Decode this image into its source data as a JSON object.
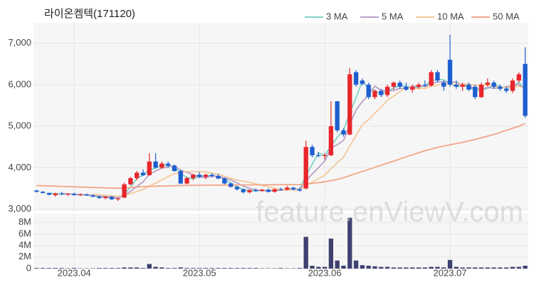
{
  "chart_data": {
    "type": "candlestick",
    "title": "라이온켐텍(171120)",
    "watermark": "feature.enViewV.com",
    "categories": [
      null,
      null,
      null,
      null,
      null,
      null,
      "2023.04",
      null,
      null,
      null,
      null,
      null,
      null,
      null,
      null,
      null,
      null,
      null,
      null,
      null,
      null,
      null,
      null,
      null,
      null,
      null,
      "2023.05",
      null,
      null,
      null,
      null,
      null,
      null,
      null,
      null,
      null,
      null,
      null,
      null,
      null,
      null,
      null,
      null,
      null,
      null,
      null,
      "2023.06",
      null,
      null,
      null,
      null,
      null,
      null,
      null,
      null,
      null,
      null,
      null,
      null,
      null,
      null,
      null,
      null,
      null,
      null,
      null,
      "2023.07",
      null,
      null,
      null,
      null,
      null,
      null,
      null,
      null,
      null,
      null,
      null,
      null
    ],
    "open": [
      3450,
      3420,
      3390,
      3340,
      3380,
      3360,
      3370,
      3340,
      3350,
      3330,
      3300,
      3270,
      3300,
      3240,
      3280,
      3600,
      3750,
      3880,
      3820,
      4150,
      4000,
      4100,
      4050,
      3920,
      3620,
      3750,
      3830,
      3780,
      3830,
      3800,
      3740,
      3620,
      3540,
      3480,
      3410,
      3460,
      3440,
      3470,
      3420,
      3480,
      3470,
      3520,
      3480,
      3500,
      4500,
      4300,
      4280,
      4300,
      5600,
      4900,
      4800,
      6300,
      6100,
      6000,
      5700,
      5850,
      5750,
      5950,
      6050,
      5950,
      5880,
      5950,
      6000,
      5980,
      6300,
      6050,
      6600,
      6000,
      5950,
      6000,
      5950,
      5700,
      6000,
      6050,
      5950,
      5900,
      5850,
      6100,
      6500
    ],
    "high": [
      3470,
      3440,
      3400,
      3400,
      3420,
      3390,
      3400,
      3380,
      3380,
      3360,
      3330,
      3320,
      3320,
      3280,
      3640,
      3780,
      3920,
      3960,
      4350,
      4350,
      4150,
      4150,
      4080,
      3950,
      3780,
      3850,
      3900,
      3860,
      3870,
      3850,
      3760,
      3640,
      3560,
      3500,
      3480,
      3500,
      3490,
      3500,
      3500,
      3520,
      3560,
      3540,
      3520,
      4650,
      4550,
      4380,
      4350,
      5600,
      5600,
      4950,
      6400,
      6350,
      6150,
      6050,
      5880,
      5900,
      6000,
      6080,
      6100,
      6050,
      6000,
      6050,
      6100,
      6350,
      6350,
      6100,
      7200,
      6100,
      6050,
      6050,
      6000,
      6050,
      6150,
      6100,
      6000,
      5950,
      6150,
      6300,
      6900
    ],
    "low": [
      3400,
      3380,
      3330,
      3300,
      3340,
      3320,
      3330,
      3320,
      3320,
      3290,
      3250,
      3240,
      3220,
      3200,
      3270,
      3580,
      3700,
      3800,
      3810,
      3980,
      3980,
      4000,
      3900,
      3600,
      3600,
      3700,
      3750,
      3720,
      3760,
      3720,
      3600,
      3520,
      3450,
      3380,
      3380,
      3420,
      3420,
      3400,
      3400,
      3450,
      3450,
      3450,
      3420,
      3480,
      4250,
      4250,
      4200,
      4280,
      4850,
      4750,
      4780,
      5950,
      5980,
      5650,
      5650,
      5700,
      5700,
      5880,
      5900,
      5850,
      5800,
      5900,
      5950,
      5950,
      6050,
      5850,
      5950,
      5900,
      5850,
      5850,
      5650,
      5680,
      5950,
      5900,
      5850,
      5800,
      5800,
      6050,
      5200
    ],
    "close": [
      3420,
      3390,
      3350,
      3380,
      3360,
      3370,
      3340,
      3350,
      3330,
      3300,
      3270,
      3300,
      3240,
      3260,
      3600,
      3750,
      3880,
      3820,
      4150,
      4000,
      4100,
      4050,
      3920,
      3620,
      3750,
      3830,
      3780,
      3830,
      3800,
      3740,
      3620,
      3540,
      3480,
      3410,
      3460,
      3440,
      3470,
      3420,
      3480,
      3470,
      3520,
      3480,
      3450,
      4500,
      4300,
      4280,
      4300,
      5000,
      4900,
      4800,
      6250,
      6000,
      6020,
      5700,
      5850,
      5750,
      5950,
      6050,
      5950,
      5880,
      5950,
      6000,
      5980,
      6300,
      6100,
      5950,
      6000,
      5950,
      6000,
      5880,
      5700,
      6000,
      6050,
      5950,
      5900,
      5850,
      6100,
      6250,
      5250
    ],
    "up_color": "#e8262b",
    "down_color": "#1e5fd0",
    "ylim": [
      2960,
      7490
    ],
    "yticks": [
      {
        "value": 3000,
        "label": "3,000"
      },
      {
        "value": 4000,
        "label": "4,000"
      },
      {
        "value": 5000,
        "label": "5,000"
      },
      {
        "value": 6000,
        "label": "6,000"
      },
      {
        "value": 7000,
        "label": "7,000"
      }
    ],
    "grid": true,
    "legend": "top-right",
    "series": [
      {
        "name": "3 MA",
        "color": "#7fd3c8",
        "values": [
          null,
          null,
          3387,
          3373,
          3363,
          3370,
          3357,
          3353,
          3340,
          3327,
          3300,
          3290,
          3270,
          3267,
          3367,
          3537,
          3743,
          3817,
          3950,
          3990,
          4083,
          4050,
          4023,
          3863,
          3763,
          3733,
          3787,
          3813,
          3803,
          3790,
          3720,
          3633,
          3547,
          3477,
          3450,
          3437,
          3457,
          3443,
          3457,
          3457,
          3490,
          3490,
          3483,
          3810,
          4083,
          4360,
          4293,
          4527,
          4733,
          4900,
          5317,
          5683,
          6090,
          5907,
          5857,
          5767,
          5850,
          5917,
          5983,
          5960,
          5927,
          5943,
          5977,
          6093,
          6127,
          6117,
          6017,
          5967,
          5983,
          5943,
          5860,
          5860,
          5917,
          6000,
          5967,
          5900,
          5950,
          6067,
          5867
        ]
      },
      {
        "name": "5 MA",
        "color": "#b9a0c9",
        "values": [
          null,
          null,
          null,
          null,
          3380,
          3370,
          3360,
          3360,
          3350,
          3338,
          3318,
          3310,
          3288,
          3274,
          3334,
          3430,
          3546,
          3662,
          3840,
          3920,
          3990,
          4024,
          4044,
          3938,
          3888,
          3834,
          3780,
          3762,
          3798,
          3796,
          3754,
          3706,
          3636,
          3558,
          3502,
          3466,
          3452,
          3440,
          3454,
          3456,
          3472,
          3474,
          3480,
          3684,
          3850,
          4002,
          4166,
          4476,
          4556,
          4656,
          5050,
          5390,
          5594,
          5754,
          5964,
          5864,
          5854,
          5860,
          5910,
          5916,
          5956,
          5966,
          5952,
          6022,
          6066,
          6066,
          6066,
          6060,
          6000,
          5956,
          5906,
          5906,
          5926,
          5916,
          5920,
          5950,
          5970,
          6010,
          5870
        ]
      },
      {
        "name": "10 MA",
        "color": "#f5c99a",
        "values": [
          null,
          null,
          null,
          null,
          null,
          null,
          null,
          null,
          null,
          3359,
          3344,
          3335,
          3324,
          3312,
          3336,
          3374,
          3428,
          3475,
          3557,
          3627,
          3710,
          3785,
          3853,
          3889,
          3904,
          3912,
          3902,
          3903,
          3868,
          3842,
          3794,
          3743,
          3699,
          3678,
          3649,
          3610,
          3579,
          3538,
          3506,
          3479,
          3469,
          3463,
          3460,
          3569,
          3653,
          3737,
          3820,
          3978,
          4120,
          4253,
          4526,
          4778,
          5035,
          5155,
          5310,
          5457,
          5622,
          5727,
          5832,
          5940,
          5910,
          5910,
          5906,
          5966,
          5991,
          6011,
          6016,
          6006,
          6011,
          6011,
          5986,
          5986,
          5993,
          5958,
          5938,
          5928,
          5938,
          5968,
          5893
        ]
      },
      {
        "name": "50 MA",
        "color": "#f4a58a",
        "values": [
          3570,
          3565,
          3560,
          3555,
          3550,
          3545,
          3540,
          3535,
          3530,
          3525,
          3520,
          3515,
          3510,
          3505,
          3515,
          3525,
          3535,
          3545,
          3550,
          3555,
          3560,
          3563,
          3566,
          3569,
          3572,
          3575,
          3577,
          3579,
          3580,
          3581,
          3582,
          3583,
          3584,
          3585,
          3586,
          3587,
          3588,
          3589,
          3590,
          3591,
          3592,
          3593,
          3595,
          3610,
          3625,
          3640,
          3660,
          3690,
          3720,
          3760,
          3810,
          3860,
          3910,
          3960,
          4010,
          4060,
          4110,
          4160,
          4210,
          4260,
          4310,
          4360,
          4410,
          4450,
          4490,
          4520,
          4550,
          4580,
          4610,
          4645,
          4680,
          4720,
          4760,
          4800,
          4850,
          4900,
          4950,
          5000,
          5060
        ]
      }
    ],
    "volume": {
      "color": "#3e4170",
      "ylim": [
        0,
        9500000
      ],
      "yticks": [
        0,
        {
          "value": 2000000,
          "label": "2M"
        },
        {
          "value": 4000000,
          "label": "4M"
        },
        {
          "value": 6000000,
          "label": "6M"
        },
        {
          "value": 8000000,
          "label": "8M"
        }
      ],
      "values": [
        100000,
        100000,
        100000,
        100000,
        100000,
        50000,
        100000,
        50000,
        50000,
        50000,
        100000,
        100000,
        100000,
        100000,
        200000,
        200000,
        200000,
        100000,
        800000,
        300000,
        200000,
        100000,
        100000,
        200000,
        100000,
        100000,
        100000,
        100000,
        100000,
        100000,
        100000,
        100000,
        100000,
        100000,
        100000,
        100000,
        50000,
        50000,
        50000,
        100000,
        50000,
        50000,
        100000,
        5500000,
        500000,
        300000,
        300000,
        5200000,
        1400000,
        500000,
        8800000,
        1400000,
        600000,
        500000,
        400000,
        300000,
        300000,
        200000,
        200000,
        200000,
        200000,
        200000,
        200000,
        300000,
        300000,
        200000,
        1500000,
        300000,
        200000,
        200000,
        200000,
        200000,
        200000,
        200000,
        200000,
        200000,
        300000,
        300000,
        500000
      ]
    }
  }
}
